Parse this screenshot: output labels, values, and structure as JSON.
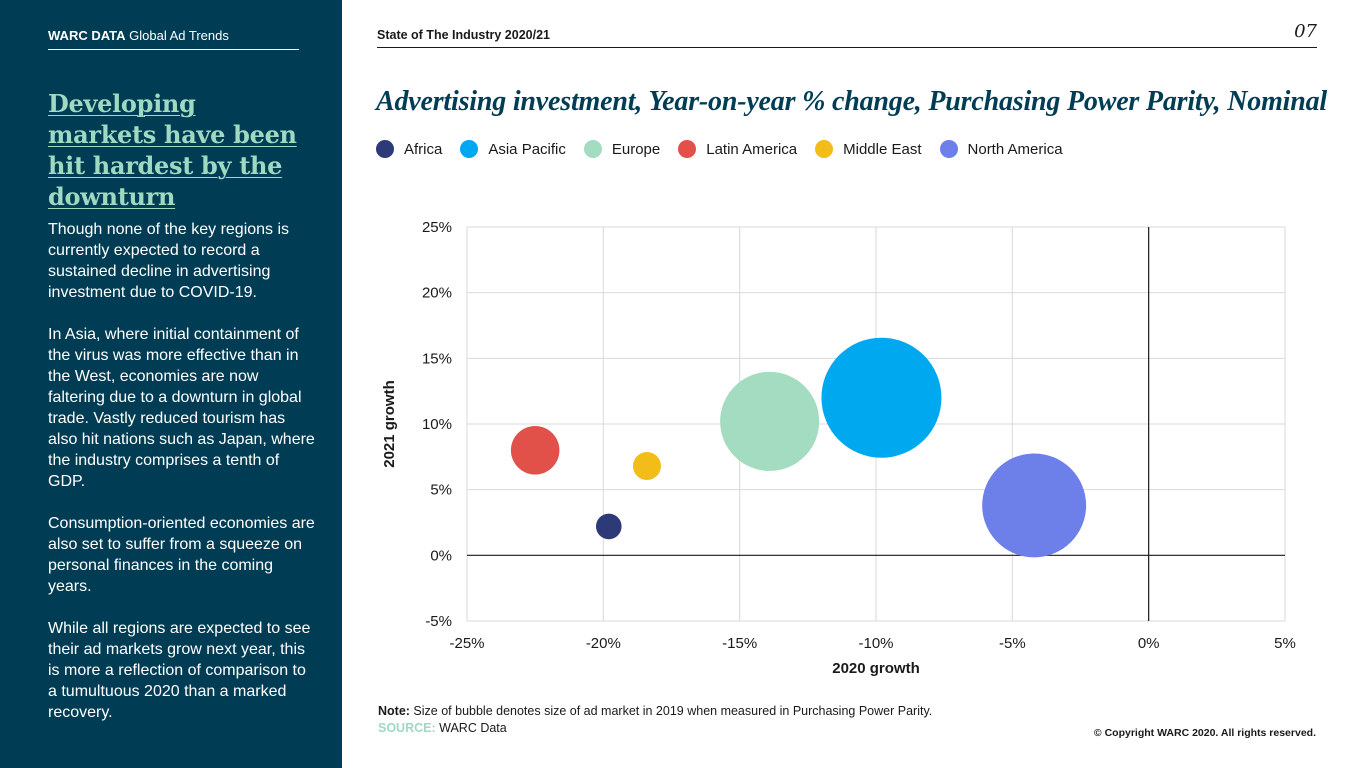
{
  "sidebar": {
    "brand_bold": "WARC DATA",
    "brand_rest": " Global Ad Trends",
    "headline": "Developing markets have been hit hardest by the downturn",
    "paragraphs": [
      "Though none of the key regions is currently expected to record a sustained decline in advertising investment due to COVID-19.",
      "In Asia, where initial containment of the virus was more effective than in the West, economies are now faltering due to a downturn in global trade. Vastly reduced tourism has also hit nations such as Japan, where the industry comprises a tenth of GDP.",
      "Consumption-oriented economies are also set to suffer from a squeeze on personal finances in the coming years.",
      "While all regions are expected to see their ad markets grow next year, this is more a reflection of comparison to a tumultuous 2020 than a marked recovery."
    ]
  },
  "header": {
    "report_title": "State of The Industry 2020/21",
    "page_number": "07"
  },
  "chart_data": {
    "type": "scatter",
    "title": "Advertising investment, Year-on-year % change, Purchasing Power Parity, Nominal",
    "xlabel": "2020 growth",
    "ylabel": "2021 growth",
    "xlim": [
      -25,
      5
    ],
    "ylim": [
      -5,
      25
    ],
    "x_ticks": [
      -25,
      -20,
      -15,
      -10,
      -5,
      0,
      5
    ],
    "y_ticks": [
      -5,
      0,
      5,
      10,
      15,
      20,
      25
    ],
    "x_tick_labels": [
      "-25%",
      "-20%",
      "-15%",
      "-10%",
      "-5%",
      "0%",
      "5%"
    ],
    "y_tick_labels": [
      "-5%",
      "0%",
      "5%",
      "10%",
      "15%",
      "20%",
      "25%"
    ],
    "grid": true,
    "legend_position": "top",
    "bubble_size_meaning": "size of ad market in 2019 (PPP)",
    "series": [
      {
        "name": "Africa",
        "x": -19.8,
        "y": 2.2,
        "size": 1.0,
        "color": "#2e3a78"
      },
      {
        "name": "Asia Pacific",
        "x": -9.8,
        "y": 12.0,
        "size": 22.0,
        "color": "#00a8f0"
      },
      {
        "name": "Europe",
        "x": -13.9,
        "y": 10.2,
        "size": 15.0,
        "color": "#a3dcc0"
      },
      {
        "name": "Latin America",
        "x": -22.5,
        "y": 8.0,
        "size": 3.6,
        "color": "#e2504a"
      },
      {
        "name": "Middle East",
        "x": -18.4,
        "y": 6.8,
        "size": 1.2,
        "color": "#f2bd18"
      },
      {
        "name": "North America",
        "x": -4.2,
        "y": 3.8,
        "size": 16.5,
        "color": "#6d7fe8"
      }
    ]
  },
  "footer": {
    "note_label": "Note:",
    "note_text": " Size of bubble denotes size of ad market in 2019 when measured in Purchasing Power Parity.",
    "source_label": "SOURCE:",
    "source_text": " WARC Data",
    "copyright": "© Copyright WARC 2020. All rights reserved."
  }
}
